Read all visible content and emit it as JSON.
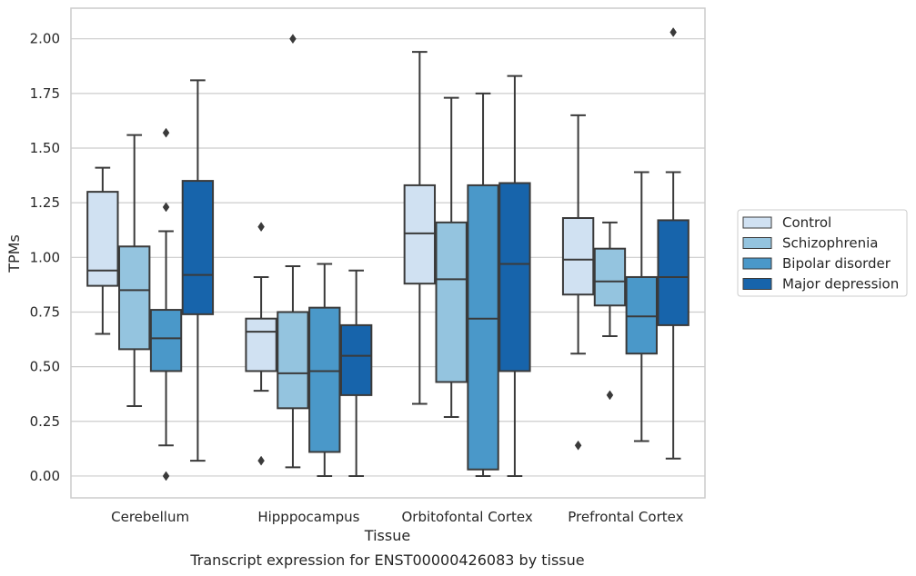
{
  "chart_data": {
    "type": "box",
    "xlabel": "Tissue",
    "ylabel": "TPMs",
    "caption": "Transcript expression for ENST00000426083 by tissue",
    "ylim": [
      -0.1,
      2.14
    ],
    "yticks": [
      0.0,
      0.25,
      0.5,
      0.75,
      1.0,
      1.25,
      1.5,
      1.75,
      2.0
    ],
    "ytick_labels": [
      "0.00",
      "0.25",
      "0.50",
      "0.75",
      "1.00",
      "1.25",
      "1.50",
      "1.75",
      "2.00"
    ],
    "grid": "horizontal",
    "legend_position": "right",
    "categories": [
      "Cerebellum",
      "Hipppocampus",
      "Orbitofontal Cortex",
      "Prefrontal Cortex"
    ],
    "series": [
      {
        "name": "Control",
        "color": "#d0e1f2",
        "boxes": [
          {
            "whisker_low": 0.65,
            "q1": 0.87,
            "median": 0.94,
            "q3": 1.3,
            "whisker_high": 1.41,
            "outliers": []
          },
          {
            "whisker_low": 0.39,
            "q1": 0.48,
            "median": 0.66,
            "q3": 0.72,
            "whisker_high": 0.91,
            "outliers": [
              1.14,
              0.07
            ]
          },
          {
            "whisker_low": 0.33,
            "q1": 0.88,
            "median": 1.11,
            "q3": 1.33,
            "whisker_high": 1.94,
            "outliers": []
          },
          {
            "whisker_low": 0.56,
            "q1": 0.83,
            "median": 0.99,
            "q3": 1.18,
            "whisker_high": 1.65,
            "outliers": [
              0.14
            ]
          }
        ]
      },
      {
        "name": "Schizophrenia",
        "color": "#94c4df",
        "boxes": [
          {
            "whisker_low": 0.32,
            "q1": 0.58,
            "median": 0.85,
            "q3": 1.05,
            "whisker_high": 1.56,
            "outliers": []
          },
          {
            "whisker_low": 0.04,
            "q1": 0.31,
            "median": 0.47,
            "q3": 0.75,
            "whisker_high": 0.96,
            "outliers": [
              2.0
            ]
          },
          {
            "whisker_low": 0.27,
            "q1": 0.43,
            "median": 0.9,
            "q3": 1.16,
            "whisker_high": 1.73,
            "outliers": []
          },
          {
            "whisker_low": 0.64,
            "q1": 0.78,
            "median": 0.89,
            "q3": 1.04,
            "whisker_high": 1.16,
            "outliers": [
              0.37
            ]
          }
        ]
      },
      {
        "name": "Bipolar disorder",
        "color": "#4a98c9",
        "boxes": [
          {
            "whisker_low": 0.14,
            "q1": 0.48,
            "median": 0.63,
            "q3": 0.76,
            "whisker_high": 1.12,
            "outliers": [
              1.57,
              1.23,
              0.0
            ]
          },
          {
            "whisker_low": 0.0,
            "q1": 0.11,
            "median": 0.48,
            "q3": 0.77,
            "whisker_high": 0.97,
            "outliers": []
          },
          {
            "whisker_low": 0.0,
            "q1": 0.03,
            "median": 0.72,
            "q3": 1.33,
            "whisker_high": 1.75,
            "outliers": []
          },
          {
            "whisker_low": 0.16,
            "q1": 0.56,
            "median": 0.73,
            "q3": 0.91,
            "whisker_high": 1.39,
            "outliers": []
          }
        ]
      },
      {
        "name": "Major depression",
        "color": "#1764ab",
        "boxes": [
          {
            "whisker_low": 0.07,
            "q1": 0.74,
            "median": 0.92,
            "q3": 1.35,
            "whisker_high": 1.81,
            "outliers": []
          },
          {
            "whisker_low": 0.0,
            "q1": 0.37,
            "median": 0.55,
            "q3": 0.69,
            "whisker_high": 0.94,
            "outliers": []
          },
          {
            "whisker_low": 0.0,
            "q1": 0.48,
            "median": 0.97,
            "q3": 1.34,
            "whisker_high": 1.83,
            "outliers": []
          },
          {
            "whisker_low": 0.08,
            "q1": 0.69,
            "median": 0.91,
            "q3": 1.17,
            "whisker_high": 1.39,
            "outliers": [
              2.03
            ]
          }
        ]
      }
    ]
  }
}
